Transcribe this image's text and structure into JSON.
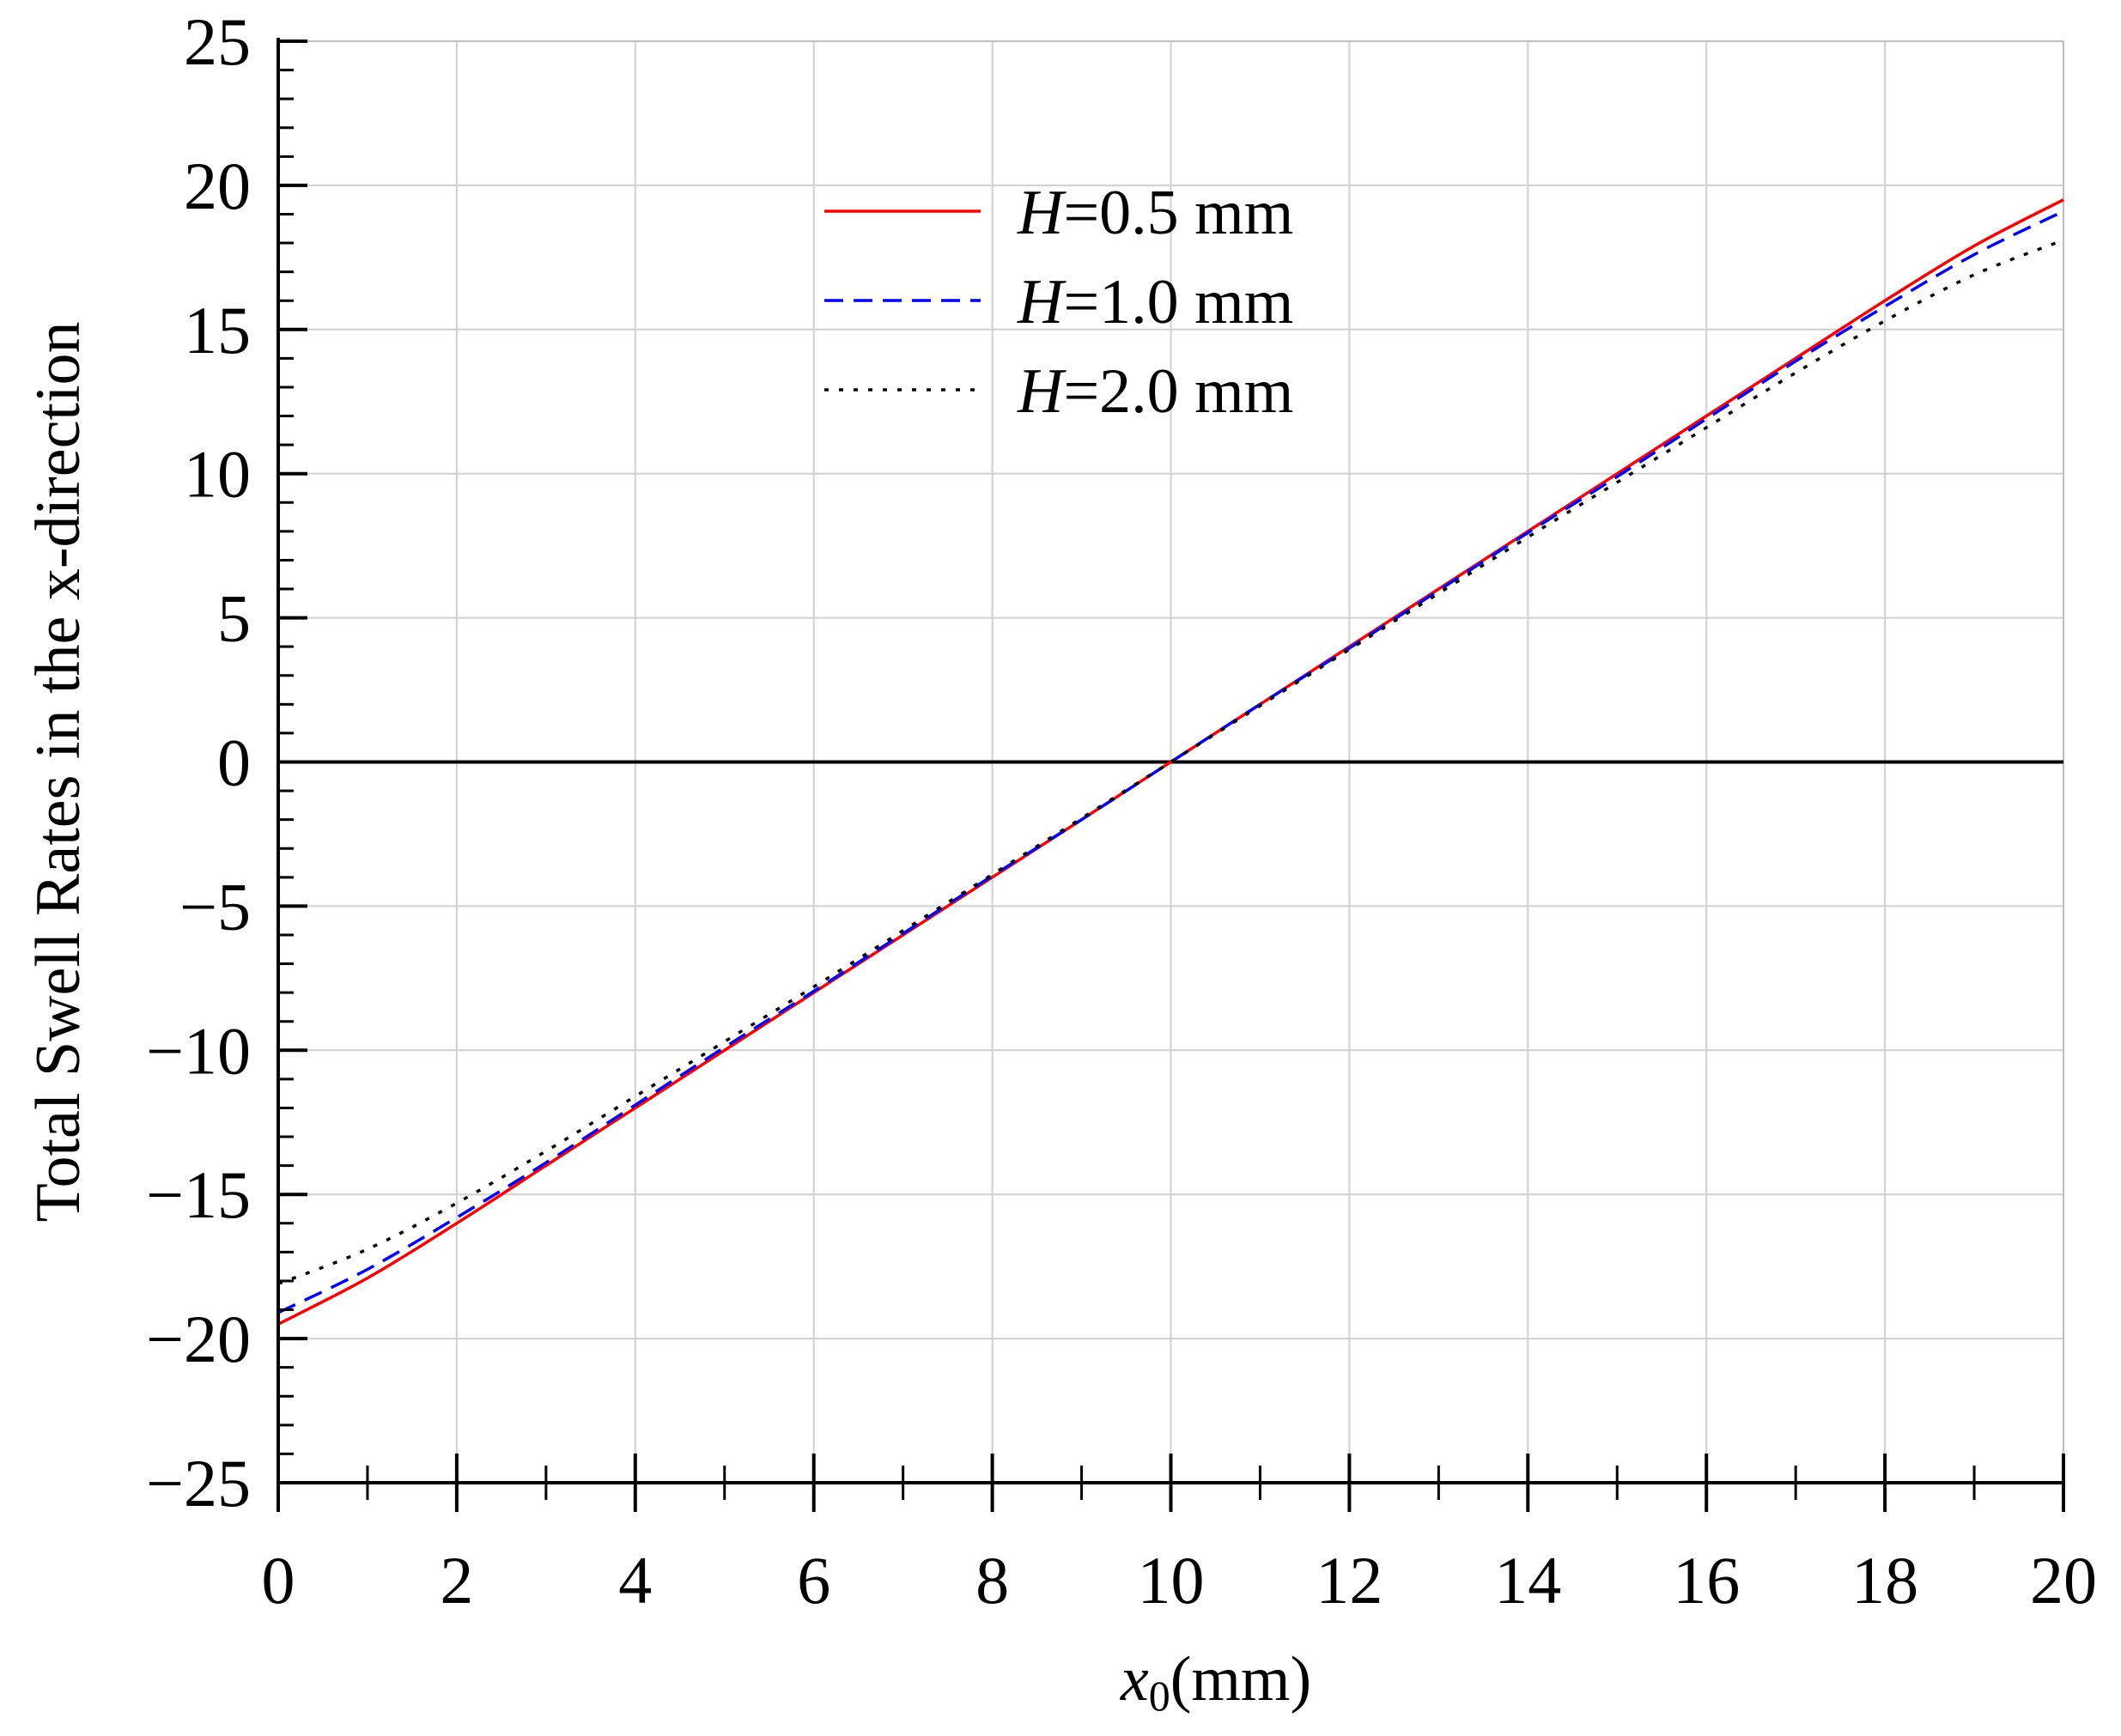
{
  "chart_data": {
    "type": "line",
    "title": "",
    "xlabel": {
      "var": "x",
      "sub": "0",
      "unit": "(mm)"
    },
    "ylabel": "Total Swell Rates in the x-direction",
    "xlim": [
      0,
      20
    ],
    "ylim": [
      -25,
      25
    ],
    "x_ticks": [
      0,
      2,
      4,
      6,
      8,
      10,
      12,
      14,
      16,
      18,
      20
    ],
    "y_ticks": [
      -25,
      -20,
      -15,
      -10,
      -5,
      0,
      5,
      10,
      15,
      20,
      25
    ],
    "x_tick_labels": [
      "0",
      "2",
      "4",
      "6",
      "8",
      "10",
      "12",
      "14",
      "16",
      "18",
      "20"
    ],
    "y_tick_labels": [
      "−25",
      "−20",
      "−15",
      "−10",
      "−5",
      "0",
      "5",
      "10",
      "15",
      "20",
      "25"
    ],
    "grid": true,
    "zero_line": true,
    "legend_position": "top-center",
    "series": [
      {
        "name": "H=0.5 mm",
        "legend_var": "H",
        "legend_rest": "=0.5 mm",
        "color": "#ff0000",
        "style": "solid",
        "x": [
          0,
          1,
          2,
          3,
          4,
          5,
          6,
          7,
          8,
          9,
          10,
          11,
          12,
          13,
          14,
          15,
          16,
          17,
          18,
          19,
          20
        ],
        "y": [
          -19.5,
          -17.9,
          -16.0,
          -14.0,
          -12.0,
          -10.0,
          -8.0,
          -6.0,
          -4.0,
          -2.0,
          0.0,
          2.0,
          4.0,
          6.0,
          8.0,
          10.0,
          12.0,
          14.0,
          16.0,
          17.9,
          19.5
        ]
      },
      {
        "name": "H=1.0 mm",
        "legend_var": "H",
        "legend_rest": "=1.0 mm",
        "color": "#0000ff",
        "style": "dashed",
        "x": [
          0,
          1,
          2,
          3,
          4,
          5,
          6,
          7,
          8,
          9,
          10,
          11,
          12,
          13,
          14,
          15,
          16,
          17,
          18,
          19,
          20
        ],
        "y": [
          -19.1,
          -17.6,
          -15.8,
          -13.9,
          -11.9,
          -9.9,
          -7.95,
          -5.95,
          -3.95,
          -2.0,
          0.0,
          2.0,
          3.95,
          5.95,
          7.95,
          9.9,
          11.9,
          13.9,
          15.8,
          17.6,
          19.1
        ]
      },
      {
        "name": "H=2.0 mm",
        "legend_var": "H",
        "legend_rest": "=2.0 mm",
        "color": "#000000",
        "style": "dotted",
        "x": [
          0,
          1,
          2,
          3,
          4,
          5,
          6,
          7,
          8,
          9,
          10,
          11,
          12,
          13,
          14,
          15,
          16,
          17,
          18,
          19,
          20
        ],
        "y": [
          -18.1,
          -16.9,
          -15.3,
          -13.5,
          -11.6,
          -9.7,
          -7.8,
          -5.85,
          -3.9,
          -1.95,
          0.0,
          1.95,
          3.9,
          5.85,
          7.8,
          9.7,
          11.6,
          13.5,
          15.3,
          16.9,
          18.1
        ]
      }
    ]
  }
}
